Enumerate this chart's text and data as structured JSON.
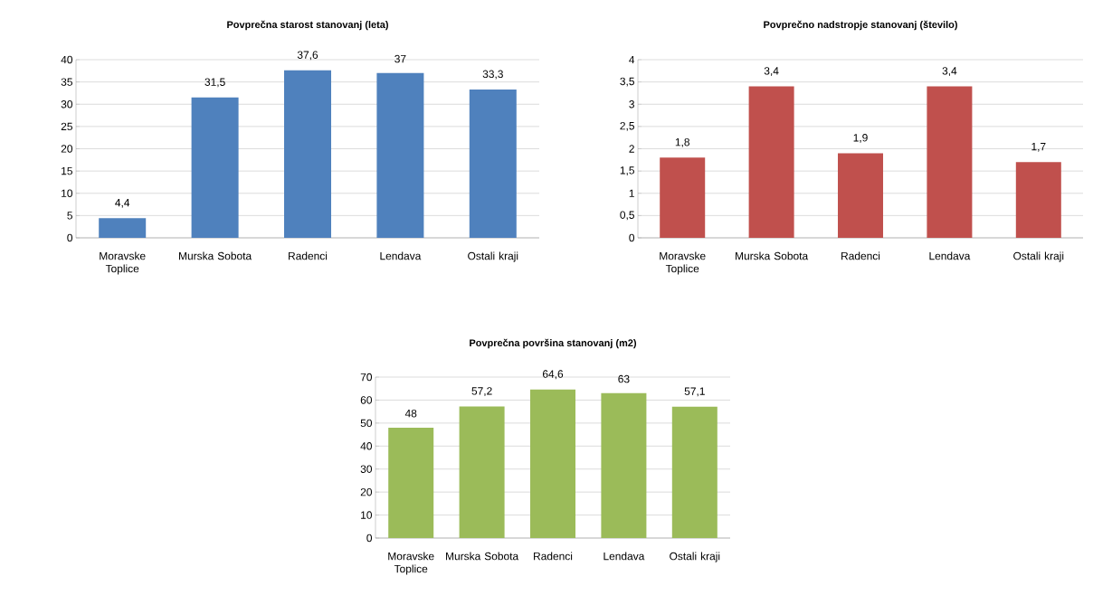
{
  "chart_data": [
    {
      "type": "bar",
      "title": "Povprečna starost stanovanj (leta)",
      "categories": [
        "Moravske Toplice",
        "Murska Sobota",
        "Radenci",
        "Lendava",
        "Ostali kraji"
      ],
      "values": [
        4.4,
        31.5,
        37.6,
        37,
        33.3
      ],
      "value_labels": [
        "4,4",
        "31,5",
        "37,6",
        "37",
        "33,3"
      ],
      "color": "#4f81bd",
      "ylim": [
        0,
        40
      ],
      "yticks": [
        0,
        5,
        10,
        15,
        20,
        25,
        30,
        35,
        40
      ],
      "grid": "y"
    },
    {
      "type": "bar",
      "title": "Povprečno nadstropje stanovanj (število)",
      "categories": [
        "Moravske Toplice",
        "Murska Sobota",
        "Radenci",
        "Lendava",
        "Ostali kraji"
      ],
      "values": [
        1.8,
        3.4,
        1.9,
        3.4,
        1.7
      ],
      "value_labels": [
        "1,8",
        "3,4",
        "1,9",
        "3,4",
        "1,7"
      ],
      "color": "#c0504d",
      "ylim": [
        0,
        4
      ],
      "yticks": [
        0,
        {
          "value": 0.5,
          "label": "0,5"
        },
        1,
        {
          "value": 1.5,
          "label": "1,5"
        },
        2,
        {
          "value": 2.5,
          "label": "2,5"
        },
        3,
        {
          "value": 3.5,
          "label": "3,5"
        },
        4
      ],
      "grid": "y"
    },
    {
      "type": "bar",
      "title": "Povprečna površina stanovanj (m2)",
      "categories": [
        "Moravske Toplice",
        "Murska Sobota",
        "Radenci",
        "Lendava",
        "Ostali kraji"
      ],
      "values": [
        48,
        57.2,
        64.6,
        63,
        57.1
      ],
      "value_labels": [
        "48",
        "57,2",
        "64,6",
        "63",
        "57,1"
      ],
      "color": "#9bbb59",
      "ylim": [
        0,
        70
      ],
      "yticks": [
        0,
        10,
        20,
        30,
        40,
        50,
        60,
        70
      ],
      "grid": "y"
    }
  ]
}
